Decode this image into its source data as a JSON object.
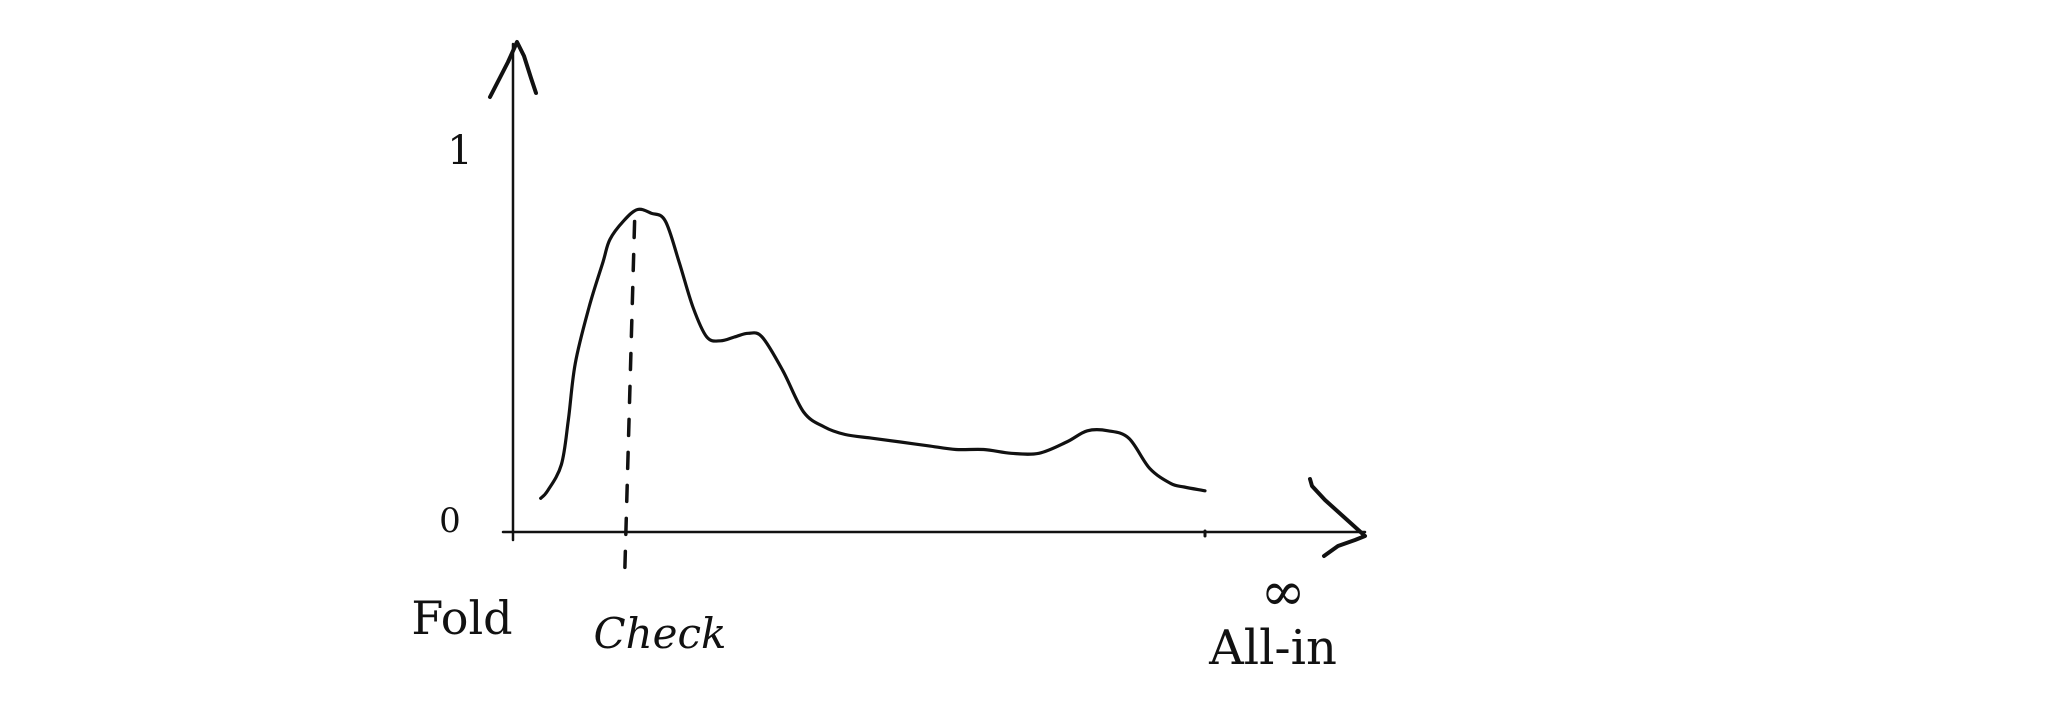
{
  "chart_data": {
    "type": "line",
    "title": "",
    "xlabel": "",
    "ylabel": "",
    "x_tick_labels": [
      "Fold",
      "Check",
      "All-in"
    ],
    "x_infinity_symbol": "∞",
    "y_tick_labels": [
      "0",
      "1"
    ],
    "ylim": [
      0,
      1
    ],
    "xlim": [
      0,
      1
    ],
    "grid": false,
    "legend": "none",
    "check_marker_x": 0.17,
    "series": [
      {
        "x": [
          0.04,
          0.05,
          0.07,
          0.08,
          0.09,
          0.11,
          0.13,
          0.14,
          0.16,
          0.18,
          0.2,
          0.22,
          0.24,
          0.26,
          0.28,
          0.3,
          0.32,
          0.34,
          0.36,
          0.39,
          0.42,
          0.45,
          0.48,
          0.52,
          0.56,
          0.6,
          0.64,
          0.68,
          0.72,
          0.76,
          0.8,
          0.83,
          0.86,
          0.89,
          0.92,
          0.95,
          0.97,
          1.0
        ],
        "y": [
          0.09,
          0.11,
          0.18,
          0.3,
          0.45,
          0.6,
          0.72,
          0.78,
          0.83,
          0.86,
          0.85,
          0.83,
          0.72,
          0.6,
          0.52,
          0.51,
          0.52,
          0.53,
          0.52,
          0.43,
          0.32,
          0.28,
          0.26,
          0.25,
          0.24,
          0.23,
          0.22,
          0.22,
          0.21,
          0.21,
          0.24,
          0.27,
          0.27,
          0.25,
          0.17,
          0.13,
          0.12,
          0.11
        ]
      }
    ]
  }
}
